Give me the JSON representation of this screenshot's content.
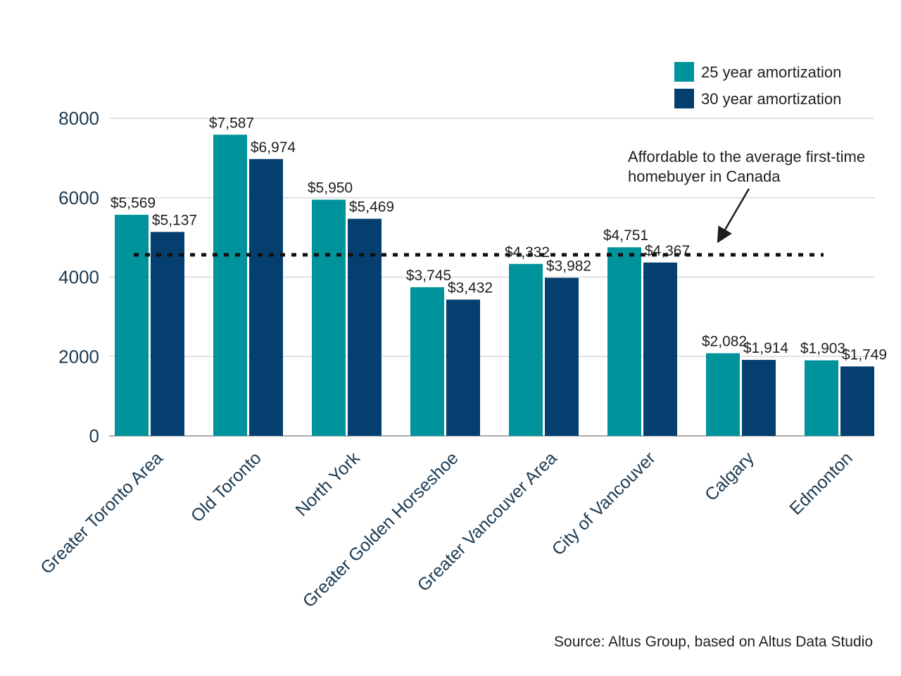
{
  "chart_data": {
    "type": "bar",
    "title": "",
    "xlabel": "",
    "ylabel": "",
    "categories": [
      "Greater Toronto Area",
      "Old Toronto",
      "North York",
      "Greater Golden Horseshoe",
      "Greater Vancouver Area",
      "City of Vancouver",
      "Calgary",
      "Edmonton"
    ],
    "series": [
      {
        "name": "25 year amortization",
        "color": "#00939B",
        "values": [
          5569,
          7587,
          5950,
          3745,
          4332,
          4751,
          2082,
          1903
        ]
      },
      {
        "name": "30 year amortization",
        "color": "#043F70",
        "values": [
          5137,
          6974,
          5469,
          3432,
          3982,
          4367,
          1914,
          1749
        ]
      }
    ],
    "value_prefix": "$",
    "ylim": [
      0,
      8000
    ],
    "yticks": [
      0,
      2000,
      4000,
      6000,
      8000
    ],
    "grid": "horizontal",
    "legend_position": "top-right",
    "threshold": {
      "value": 4560,
      "lines": [
        "Affordable to the average first-time",
        "homebuyer in Canada"
      ]
    },
    "source": "Source: Altus Group, based on Altus Data Studio",
    "colors": {
      "axis_text": "#1b3a52",
      "value_text": "#1f1f1f",
      "gridline": "#d9d9d9",
      "threshold_line": "#111111"
    }
  }
}
